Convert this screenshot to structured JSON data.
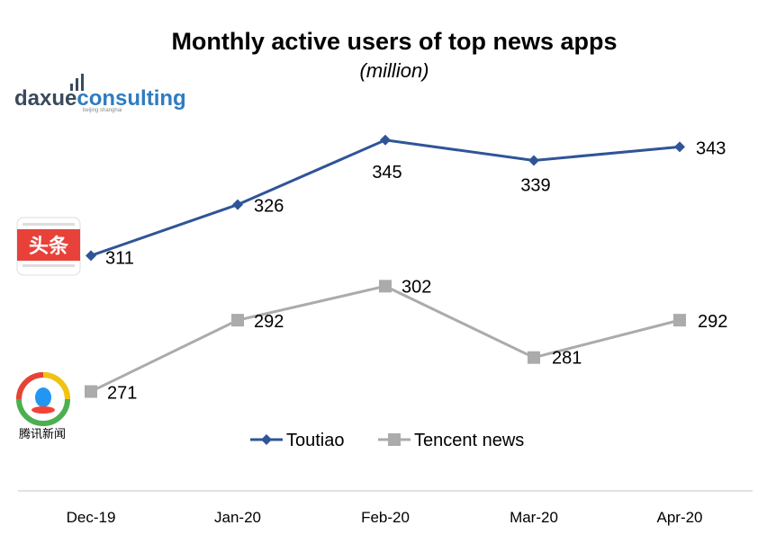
{
  "chart_data": {
    "type": "line",
    "title": "Monthly active users of top news apps",
    "subtitle": "(million)",
    "categories": [
      "Dec-19",
      "Jan-20",
      "Feb-20",
      "Mar-20",
      "Apr-20"
    ],
    "series": [
      {
        "name": "Toutiao",
        "values": [
          311,
          326,
          345,
          339,
          343
        ],
        "color": "#2F5597",
        "marker": "diamond"
      },
      {
        "name": "Tencent news",
        "values": [
          271,
          292,
          302,
          281,
          292
        ],
        "color": "#ABABAB",
        "marker": "square"
      }
    ],
    "ylim": [
      255,
      355
    ],
    "xlabel": "",
    "ylabel": "",
    "grid": false,
    "legend": "bottom-center"
  },
  "branding": {
    "logo_text_dark": "daxue",
    "logo_text_blue": "consulting",
    "logo_sub": "beijing shanghai"
  },
  "apps": {
    "toutiao_logo": "头条",
    "tencent_name": "腾讯新闻"
  },
  "colors": {
    "toutiao_red": "#E8413A",
    "brand_dark": "#3A4A5C",
    "brand_blue": "#2E7CC0"
  }
}
